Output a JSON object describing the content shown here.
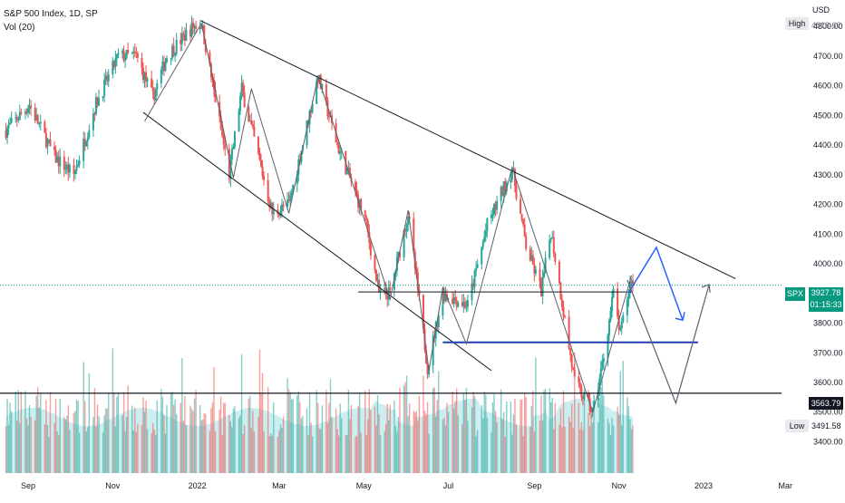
{
  "legend": {
    "title": "S&P 500 Index, 1D, SP",
    "indicator": "Vol (20)"
  },
  "axis": {
    "currency": "USD"
  },
  "badges": {
    "high_label": "High",
    "high_value": "4818.62",
    "low_label": "Low",
    "low_value": "3491.58",
    "symbol": "SPX",
    "last_price": "3927.78",
    "countdown": "01:15:33",
    "support_value": "3563.79"
  },
  "colors": {
    "up": "#26a69a",
    "down": "#ef5350",
    "projection": "#2962ff",
    "trend": "#131722",
    "support": "#1e3fb3",
    "volume_ma": "#cdeef0"
  },
  "chart_data": {
    "type": "candlestick",
    "title": "S&P 500 Index, 1D, SP",
    "ylabel": "USD",
    "ylim": [
      3340,
      4850
    ],
    "y_ticks": [
      3400,
      3500,
      3600,
      3700,
      3800,
      3900,
      4000,
      4100,
      4200,
      4300,
      4400,
      4500,
      4600,
      4700,
      4800
    ],
    "x_ticks": [
      "Sep",
      "Nov",
      "2022",
      "Mar",
      "May",
      "Jul",
      "Sep",
      "Nov",
      "2023",
      "Mar"
    ],
    "x_tick_dates": [
      "2021-09-01",
      "2021-11-01",
      "2022-01-01",
      "2022-03-01",
      "2022-05-01",
      "2022-07-01",
      "2022-09-01",
      "2022-11-01",
      "2023-01-01",
      "2023-03-01"
    ],
    "price_path": [
      [
        "2021-08-16",
        4450
      ],
      [
        "2021-09-02",
        4535
      ],
      [
        "2021-09-20",
        4360
      ],
      [
        "2021-10-04",
        4300
      ],
      [
        "2021-10-20",
        4540
      ],
      [
        "2021-11-05",
        4700
      ],
      [
        "2021-11-18",
        4700
      ],
      [
        "2021-11-30",
        4560
      ],
      [
        "2021-12-10",
        4700
      ],
      [
        "2021-12-29",
        4800
      ],
      [
        "2022-01-04",
        4810
      ],
      [
        "2022-01-24",
        4300
      ],
      [
        "2022-02-02",
        4590
      ],
      [
        "2022-02-24",
        4170
      ],
      [
        "2022-03-08",
        4200
      ],
      [
        "2022-03-29",
        4630
      ],
      [
        "2022-04-12",
        4400
      ],
      [
        "2022-05-02",
        4150
      ],
      [
        "2022-05-12",
        3900
      ],
      [
        "2022-05-20",
        3900
      ],
      [
        "2022-06-02",
        4170
      ],
      [
        "2022-06-16",
        3650
      ],
      [
        "2022-06-27",
        3900
      ],
      [
        "2022-07-15",
        3860
      ],
      [
        "2022-07-29",
        4130
      ],
      [
        "2022-08-16",
        4320
      ],
      [
        "2022-08-26",
        4060
      ],
      [
        "2022-09-06",
        3910
      ],
      [
        "2022-09-13",
        4110
      ],
      [
        "2022-09-30",
        3600
      ],
      [
        "2022-10-13",
        3500
      ],
      [
        "2022-10-20",
        3660
      ],
      [
        "2022-10-28",
        3900
      ],
      [
        "2022-11-02",
        3760
      ],
      [
        "2022-11-10",
        3960
      ],
      [
        "2022-11-11",
        3930
      ]
    ],
    "drawings": {
      "upper_trendline": [
        [
          "2022-01-03",
          4820
        ],
        [
          "2023-01-24",
          3950
        ]
      ],
      "lower_channel": [
        [
          "2021-11-23",
          4510
        ],
        [
          "2022-08-01",
          3640
        ]
      ],
      "resistance_line": [
        [
          "2022-04-27",
          3905
        ],
        [
          "2022-11-10",
          3905
        ]
      ],
      "support_line_blue": [
        [
          "2022-06-27",
          3735
        ],
        [
          "2022-12-28",
          3735
        ]
      ],
      "support_level": 3563.79,
      "current_level": 3927.78,
      "projection_blue": [
        [
          "2022-11-08",
          3903
        ],
        [
          "2022-11-28",
          4055
        ],
        [
          "2022-12-17",
          3810
        ]
      ],
      "projection_gray": [
        [
          "2022-11-07",
          3945
        ],
        [
          "2022-12-12",
          3530
        ],
        [
          "2023-01-05",
          3930
        ]
      ]
    },
    "volume": {
      "label": "Vol (20)"
    },
    "high": 4818.62,
    "low": 3491.58,
    "last": 3927.78
  }
}
